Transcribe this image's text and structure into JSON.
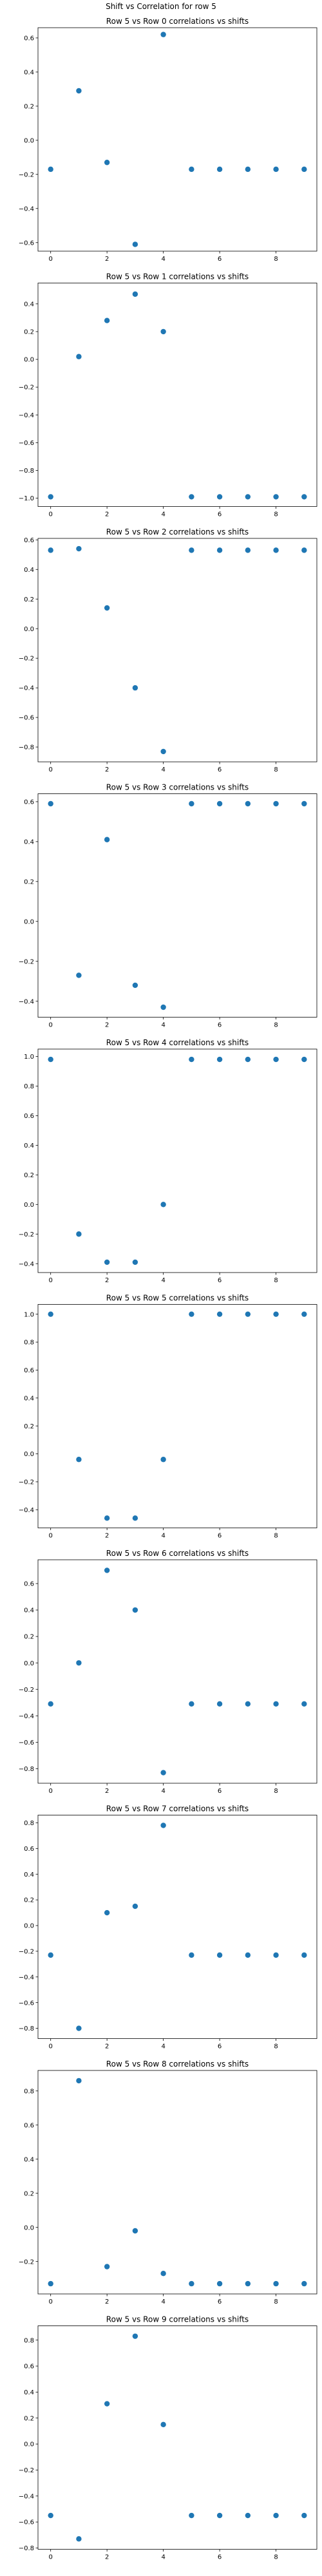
{
  "figure": {
    "suptitle": "Shift vs Correlation for row 5"
  },
  "chart_data": [
    {
      "type": "scatter",
      "title": "Row 5 vs Row 0 correlations vs shifts",
      "xlabel": "",
      "ylabel": "",
      "x": [
        0,
        1,
        2,
        3,
        4,
        5,
        6,
        7,
        8,
        9
      ],
      "y": [
        -0.17,
        0.29,
        -0.13,
        -0.61,
        0.62,
        -0.17,
        -0.17,
        -0.17,
        -0.17,
        -0.17
      ],
      "xlim": [
        -0.45,
        9.45
      ],
      "ylim": [
        -0.65,
        0.66
      ],
      "xticks": [
        0,
        2,
        4,
        6,
        8
      ],
      "yticks": [
        -0.6,
        -0.4,
        -0.2,
        0.0,
        0.2,
        0.4,
        0.6
      ],
      "color": "#1f77b4",
      "grid": false
    },
    {
      "type": "scatter",
      "title": "Row 5 vs Row 1 correlations vs shifts",
      "xlabel": "",
      "ylabel": "",
      "x": [
        0,
        1,
        2,
        3,
        4,
        5,
        6,
        7,
        8,
        9
      ],
      "y": [
        -0.99,
        0.02,
        0.28,
        0.47,
        0.2,
        -0.99,
        -0.99,
        -0.99,
        -0.99,
        -0.99
      ],
      "xlim": [
        -0.45,
        9.45
      ],
      "ylim": [
        -1.06,
        0.55
      ],
      "xticks": [
        0,
        2,
        4,
        6,
        8
      ],
      "yticks": [
        -1.0,
        -0.8,
        -0.6,
        -0.4,
        -0.2,
        0.0,
        0.2,
        0.4
      ],
      "color": "#1f77b4",
      "grid": false
    },
    {
      "type": "scatter",
      "title": "Row 5 vs Row 2 correlations vs shifts",
      "xlabel": "",
      "ylabel": "",
      "x": [
        0,
        1,
        2,
        3,
        4,
        5,
        6,
        7,
        8,
        9
      ],
      "y": [
        0.53,
        0.54,
        0.14,
        -0.4,
        -0.83,
        0.53,
        0.53,
        0.53,
        0.53,
        0.53
      ],
      "xlim": [
        -0.45,
        9.45
      ],
      "ylim": [
        -0.9,
        0.61
      ],
      "xticks": [
        0,
        2,
        4,
        6,
        8
      ],
      "yticks": [
        -0.8,
        -0.6,
        -0.4,
        -0.2,
        0.0,
        0.2,
        0.4,
        0.6
      ],
      "color": "#1f77b4",
      "grid": false
    },
    {
      "type": "scatter",
      "title": "Row 5 vs Row 3 correlations vs shifts",
      "xlabel": "",
      "ylabel": "",
      "x": [
        0,
        1,
        2,
        3,
        4,
        5,
        6,
        7,
        8,
        9
      ],
      "y": [
        0.59,
        -0.27,
        0.41,
        -0.32,
        -0.43,
        0.59,
        0.59,
        0.59,
        0.59,
        0.59
      ],
      "xlim": [
        -0.45,
        9.45
      ],
      "ylim": [
        -0.48,
        0.64
      ],
      "xticks": [
        0,
        2,
        4,
        6,
        8
      ],
      "yticks": [
        -0.4,
        -0.2,
        0.0,
        0.2,
        0.4,
        0.6
      ],
      "color": "#1f77b4",
      "grid": false
    },
    {
      "type": "scatter",
      "title": "Row 5 vs Row 4 correlations vs shifts",
      "xlabel": "",
      "ylabel": "",
      "x": [
        0,
        1,
        2,
        3,
        4,
        5,
        6,
        7,
        8,
        9
      ],
      "y": [
        0.98,
        -0.2,
        -0.39,
        -0.39,
        0.0,
        0.98,
        0.98,
        0.98,
        0.98,
        0.98
      ],
      "xlim": [
        -0.45,
        9.45
      ],
      "ylim": [
        -0.46,
        1.05
      ],
      "xticks": [
        0,
        2,
        4,
        6,
        8
      ],
      "yticks": [
        -0.4,
        -0.2,
        0.0,
        0.2,
        0.4,
        0.6,
        0.8,
        1.0
      ],
      "color": "#1f77b4",
      "grid": false
    },
    {
      "type": "scatter",
      "title": "Row 5 vs Row 5 correlations vs shifts",
      "xlabel": "",
      "ylabel": "",
      "x": [
        0,
        1,
        2,
        3,
        4,
        5,
        6,
        7,
        8,
        9
      ],
      "y": [
        1.0,
        -0.04,
        -0.46,
        -0.46,
        -0.04,
        1.0,
        1.0,
        1.0,
        1.0,
        1.0
      ],
      "xlim": [
        -0.45,
        9.45
      ],
      "ylim": [
        -0.53,
        1.07
      ],
      "xticks": [
        0,
        2,
        4,
        6,
        8
      ],
      "yticks": [
        -0.4,
        -0.2,
        0.0,
        0.2,
        0.4,
        0.6,
        0.8,
        1.0
      ],
      "color": "#1f77b4",
      "grid": false
    },
    {
      "type": "scatter",
      "title": "Row 5 vs Row 6 correlations vs shifts",
      "xlabel": "",
      "ylabel": "",
      "x": [
        0,
        1,
        2,
        3,
        4,
        5,
        6,
        7,
        8,
        9
      ],
      "y": [
        -0.31,
        0.0,
        0.7,
        0.4,
        -0.83,
        -0.31,
        -0.31,
        -0.31,
        -0.31,
        -0.31
      ],
      "xlim": [
        -0.45,
        9.45
      ],
      "ylim": [
        -0.91,
        0.78
      ],
      "xticks": [
        0,
        2,
        4,
        6,
        8
      ],
      "yticks": [
        -0.8,
        -0.6,
        -0.4,
        -0.2,
        0.0,
        0.2,
        0.4,
        0.6
      ],
      "color": "#1f77b4",
      "grid": false
    },
    {
      "type": "scatter",
      "title": "Row 5 vs Row 7 correlations vs shifts",
      "xlabel": "",
      "ylabel": "",
      "x": [
        0,
        1,
        2,
        3,
        4,
        5,
        6,
        7,
        8,
        9
      ],
      "y": [
        -0.23,
        -0.8,
        0.1,
        0.15,
        0.78,
        -0.23,
        -0.23,
        -0.23,
        -0.23,
        -0.23
      ],
      "xlim": [
        -0.45,
        9.45
      ],
      "ylim": [
        -0.88,
        0.86
      ],
      "xticks": [
        0,
        2,
        4,
        6,
        8
      ],
      "yticks": [
        -0.8,
        -0.6,
        -0.4,
        -0.2,
        0.0,
        0.2,
        0.4,
        0.6,
        0.8
      ],
      "color": "#1f77b4",
      "grid": false
    },
    {
      "type": "scatter",
      "title": "Row 5 vs Row 8 correlations vs shifts",
      "xlabel": "",
      "ylabel": "",
      "x": [
        0,
        1,
        2,
        3,
        4,
        5,
        6,
        7,
        8,
        9
      ],
      "y": [
        -0.33,
        0.86,
        -0.23,
        -0.02,
        -0.27,
        -0.33,
        -0.33,
        -0.33,
        -0.33,
        -0.33
      ],
      "xlim": [
        -0.45,
        9.45
      ],
      "ylim": [
        -0.39,
        0.92
      ],
      "xticks": [
        0,
        2,
        4,
        6,
        8
      ],
      "yticks": [
        -0.2,
        0.0,
        0.2,
        0.4,
        0.6,
        0.8
      ],
      "color": "#1f77b4",
      "grid": false
    },
    {
      "type": "scatter",
      "title": "Row 5 vs Row 9 correlations vs shifts",
      "xlabel": "",
      "ylabel": "",
      "x": [
        0,
        1,
        2,
        3,
        4,
        5,
        6,
        7,
        8,
        9
      ],
      "y": [
        -0.55,
        -0.73,
        0.31,
        0.83,
        0.15,
        -0.55,
        -0.55,
        -0.55,
        -0.55,
        -0.55
      ],
      "xlim": [
        -0.45,
        9.45
      ],
      "ylim": [
        -0.81,
        0.91
      ],
      "xticks": [
        0,
        2,
        4,
        6,
        8
      ],
      "yticks": [
        -0.8,
        -0.6,
        -0.4,
        -0.2,
        0.0,
        0.2,
        0.4,
        0.6,
        0.8
      ],
      "color": "#1f77b4",
      "grid": false
    }
  ]
}
